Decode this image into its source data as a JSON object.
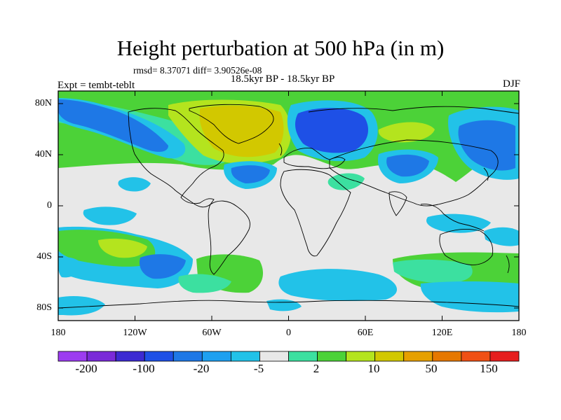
{
  "title": "Height perturbation at 500 hPa (in m)",
  "stats": "rmsd= 8.37071 diff= 3.90526e-08",
  "period": "18.5kyr BP - 18.5kyr BP",
  "experiment": "Expt = tembt-teblt",
  "season": "DJF",
  "map": {
    "latitude_labels": [
      "80N",
      "40N",
      "0",
      "40S",
      "80S"
    ],
    "longitude_labels": [
      "180",
      "120W",
      "60W",
      "0",
      "60E",
      "120E",
      "180"
    ]
  },
  "colorbar": {
    "colors": [
      "#9c3cf0",
      "#7a2ad8",
      "#3c2ad2",
      "#1e50e6",
      "#1e78e6",
      "#1ea0f0",
      "#22c2e8",
      "#e8e8e8",
      "#3ce0a0",
      "#4cd238",
      "#b4e41e",
      "#d2c800",
      "#e6a000",
      "#e67800",
      "#f05014",
      "#e61e1e"
    ],
    "labels": [
      "-200",
      "-100",
      "-20",
      "-5",
      "2",
      "10",
      "50",
      "150"
    ]
  },
  "palette": {
    "background": "#e8e8e8",
    "light_blue": "#22c2e8",
    "blue": "#1e78e6",
    "dark_blue": "#1e50e6",
    "cyan_green": "#3ce0a0",
    "green": "#4cd238",
    "yellow_green": "#b4e41e",
    "olive": "#d2c800"
  }
}
